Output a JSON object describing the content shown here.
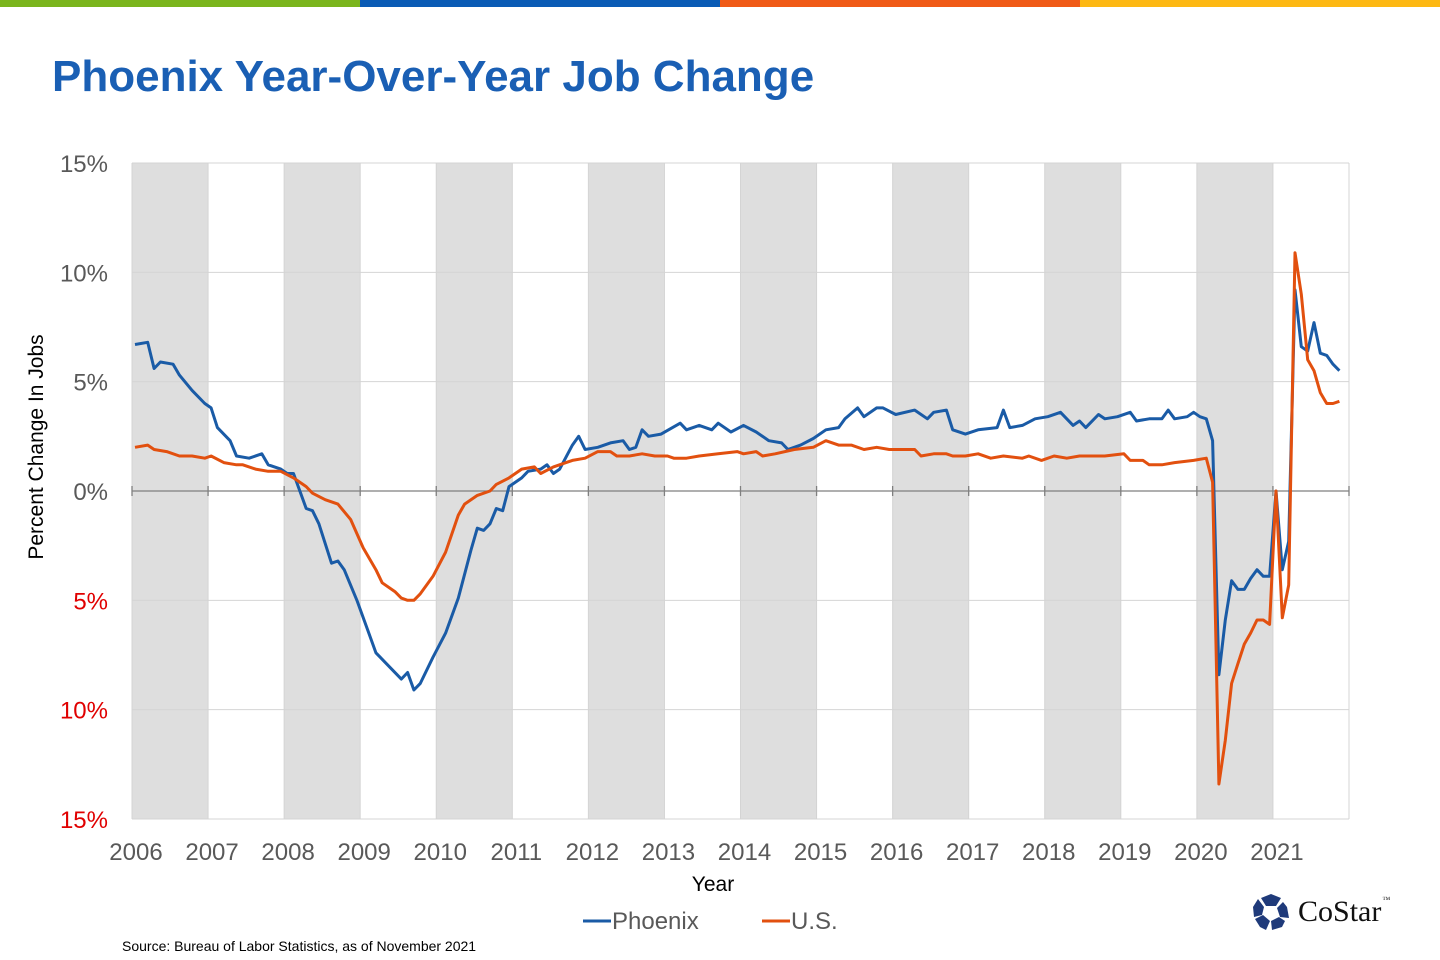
{
  "header": {
    "title": "Phoenix Year-Over-Year Job Change"
  },
  "top_bar_colors": [
    "#7ab51d",
    "#0a5bb5",
    "#f05a16",
    "#fdb813"
  ],
  "footer": {
    "source": "Source: Bureau of Labor Statistics, as of November 2021"
  },
  "logo": {
    "text": "CoStar",
    "tm": "™"
  },
  "chart_data": {
    "type": "line",
    "title": "Phoenix Year-Over-Year Job Change",
    "xlabel": "Year",
    "ylabel": "Percent Change In Jobs",
    "ylim": [
      -15,
      15
    ],
    "xlim": [
      "2006-01",
      "2021-12"
    ],
    "grid": true,
    "shaded_bands": "alternating years starting 2006",
    "legend_position": "bottom",
    "y_ticks": [
      {
        "value": 15,
        "label": "15%",
        "color": "#595959"
      },
      {
        "value": 10,
        "label": "10%",
        "color": "#595959"
      },
      {
        "value": 5,
        "label": "5%",
        "color": "#595959"
      },
      {
        "value": 0,
        "label": "0%",
        "color": "#595959"
      },
      {
        "value": -5,
        "label": "5%",
        "color": "#e00000"
      },
      {
        "value": -10,
        "label": "10%",
        "color": "#e00000"
      },
      {
        "value": -15,
        "label": "15%",
        "color": "#e00000"
      }
    ],
    "x_ticks": [
      "2006",
      "2007",
      "2008",
      "2009",
      "2010",
      "2011",
      "2012",
      "2013",
      "2014",
      "2015",
      "2016",
      "2017",
      "2018",
      "2019",
      "2020",
      "2021"
    ],
    "series": [
      {
        "name": "Phoenix",
        "color": "#1a5ba6",
        "points": [
          [
            "2006-01",
            6.7
          ],
          [
            "2006-03",
            6.8
          ],
          [
            "2006-04",
            5.6
          ],
          [
            "2006-05",
            5.9
          ],
          [
            "2006-07",
            5.8
          ],
          [
            "2006-08",
            5.3
          ],
          [
            "2006-10",
            4.6
          ],
          [
            "2006-12",
            4.0
          ],
          [
            "2007-01",
            3.8
          ],
          [
            "2007-02",
            2.9
          ],
          [
            "2007-04",
            2.3
          ],
          [
            "2007-05",
            1.6
          ],
          [
            "2007-07",
            1.5
          ],
          [
            "2007-09",
            1.7
          ],
          [
            "2007-10",
            1.2
          ],
          [
            "2007-12",
            1.0
          ],
          [
            "2008-01",
            0.8
          ],
          [
            "2008-02",
            0.8
          ],
          [
            "2008-04",
            -0.8
          ],
          [
            "2008-05",
            -0.9
          ],
          [
            "2008-06",
            -1.5
          ],
          [
            "2008-08",
            -3.3
          ],
          [
            "2008-09",
            -3.2
          ],
          [
            "2008-10",
            -3.6
          ],
          [
            "2008-12",
            -5.0
          ],
          [
            "2009-02",
            -6.6
          ],
          [
            "2009-03",
            -7.4
          ],
          [
            "2009-05",
            -8.0
          ],
          [
            "2009-07",
            -8.6
          ],
          [
            "2009-08",
            -8.3
          ],
          [
            "2009-09",
            -9.1
          ],
          [
            "2009-10",
            -8.8
          ],
          [
            "2009-12",
            -7.6
          ],
          [
            "2010-02",
            -6.5
          ],
          [
            "2010-04",
            -4.9
          ],
          [
            "2010-06",
            -2.7
          ],
          [
            "2010-07",
            -1.7
          ],
          [
            "2010-08",
            -1.8
          ],
          [
            "2010-09",
            -1.5
          ],
          [
            "2010-10",
            -0.8
          ],
          [
            "2010-11",
            -0.9
          ],
          [
            "2010-12",
            0.2
          ],
          [
            "2011-02",
            0.6
          ],
          [
            "2011-03",
            0.9
          ],
          [
            "2011-05",
            1.0
          ],
          [
            "2011-06",
            1.2
          ],
          [
            "2011-07",
            0.8
          ],
          [
            "2011-08",
            1.0
          ],
          [
            "2011-10",
            2.1
          ],
          [
            "2011-11",
            2.5
          ],
          [
            "2011-12",
            1.9
          ],
          [
            "2012-02",
            2.0
          ],
          [
            "2012-04",
            2.2
          ],
          [
            "2012-06",
            2.3
          ],
          [
            "2012-07",
            1.9
          ],
          [
            "2012-08",
            2.0
          ],
          [
            "2012-09",
            2.8
          ],
          [
            "2012-10",
            2.5
          ],
          [
            "2012-12",
            2.6
          ],
          [
            "2013-03",
            3.1
          ],
          [
            "2013-04",
            2.8
          ],
          [
            "2013-06",
            3.0
          ],
          [
            "2013-08",
            2.8
          ],
          [
            "2013-09",
            3.1
          ],
          [
            "2013-11",
            2.7
          ],
          [
            "2014-01",
            3.0
          ],
          [
            "2014-03",
            2.7
          ],
          [
            "2014-05",
            2.3
          ],
          [
            "2014-07",
            2.2
          ],
          [
            "2014-08",
            1.9
          ],
          [
            "2014-10",
            2.1
          ],
          [
            "2014-12",
            2.4
          ],
          [
            "2015-02",
            2.8
          ],
          [
            "2015-04",
            2.9
          ],
          [
            "2015-05",
            3.3
          ],
          [
            "2015-07",
            3.8
          ],
          [
            "2015-08",
            3.4
          ],
          [
            "2015-10",
            3.8
          ],
          [
            "2015-11",
            3.8
          ],
          [
            "2016-01",
            3.5
          ],
          [
            "2016-04",
            3.7
          ],
          [
            "2016-06",
            3.3
          ],
          [
            "2016-07",
            3.6
          ],
          [
            "2016-09",
            3.7
          ],
          [
            "2016-10",
            2.8
          ],
          [
            "2016-12",
            2.6
          ],
          [
            "2017-02",
            2.8
          ],
          [
            "2017-05",
            2.9
          ],
          [
            "2017-06",
            3.7
          ],
          [
            "2017-07",
            2.9
          ],
          [
            "2017-09",
            3.0
          ],
          [
            "2017-11",
            3.3
          ],
          [
            "2018-01",
            3.4
          ],
          [
            "2018-03",
            3.6
          ],
          [
            "2018-05",
            3.0
          ],
          [
            "2018-06",
            3.2
          ],
          [
            "2018-07",
            2.9
          ],
          [
            "2018-09",
            3.5
          ],
          [
            "2018-10",
            3.3
          ],
          [
            "2018-12",
            3.4
          ],
          [
            "2019-02",
            3.6
          ],
          [
            "2019-03",
            3.2
          ],
          [
            "2019-05",
            3.3
          ],
          [
            "2019-07",
            3.3
          ],
          [
            "2019-08",
            3.7
          ],
          [
            "2019-09",
            3.3
          ],
          [
            "2019-11",
            3.4
          ],
          [
            "2019-12",
            3.6
          ],
          [
            "2020-01",
            3.4
          ],
          [
            "2020-02",
            3.3
          ],
          [
            "2020-03",
            2.3
          ],
          [
            "2020-04",
            -8.4
          ],
          [
            "2020-05",
            -5.9
          ],
          [
            "2020-06",
            -4.1
          ],
          [
            "2020-07",
            -4.5
          ],
          [
            "2020-08",
            -4.5
          ],
          [
            "2020-09",
            -4.0
          ],
          [
            "2020-10",
            -3.6
          ],
          [
            "2020-11",
            -3.9
          ],
          [
            "2020-12",
            -3.9
          ],
          [
            "2021-01",
            0.0
          ],
          [
            "2021-02",
            -3.6
          ],
          [
            "2021-03",
            -2.3
          ],
          [
            "2021-04",
            9.2
          ],
          [
            "2021-05",
            6.6
          ],
          [
            "2021-06",
            6.4
          ],
          [
            "2021-07",
            7.7
          ],
          [
            "2021-08",
            6.3
          ],
          [
            "2021-09",
            6.2
          ],
          [
            "2021-10",
            5.8
          ],
          [
            "2021-11",
            5.5
          ]
        ]
      },
      {
        "name": "U.S.",
        "color": "#e2500f",
        "points": [
          [
            "2006-01",
            2.0
          ],
          [
            "2006-03",
            2.1
          ],
          [
            "2006-04",
            1.9
          ],
          [
            "2006-06",
            1.8
          ],
          [
            "2006-08",
            1.6
          ],
          [
            "2006-10",
            1.6
          ],
          [
            "2006-12",
            1.5
          ],
          [
            "2007-01",
            1.6
          ],
          [
            "2007-03",
            1.3
          ],
          [
            "2007-05",
            1.2
          ],
          [
            "2007-06",
            1.2
          ],
          [
            "2007-08",
            1.0
          ],
          [
            "2007-10",
            0.9
          ],
          [
            "2007-12",
            0.9
          ],
          [
            "2008-02",
            0.6
          ],
          [
            "2008-04",
            0.2
          ],
          [
            "2008-05",
            -0.1
          ],
          [
            "2008-07",
            -0.4
          ],
          [
            "2008-09",
            -0.6
          ],
          [
            "2008-11",
            -1.3
          ],
          [
            "2009-01",
            -2.6
          ],
          [
            "2009-03",
            -3.6
          ],
          [
            "2009-04",
            -4.2
          ],
          [
            "2009-06",
            -4.6
          ],
          [
            "2009-07",
            -4.9
          ],
          [
            "2009-08",
            -5.0
          ],
          [
            "2009-09",
            -5.0
          ],
          [
            "2009-10",
            -4.7
          ],
          [
            "2009-12",
            -3.9
          ],
          [
            "2010-02",
            -2.8
          ],
          [
            "2010-04",
            -1.1
          ],
          [
            "2010-05",
            -0.6
          ],
          [
            "2010-07",
            -0.2
          ],
          [
            "2010-09",
            0.0
          ],
          [
            "2010-10",
            0.3
          ],
          [
            "2010-12",
            0.6
          ],
          [
            "2011-02",
            1.0
          ],
          [
            "2011-04",
            1.1
          ],
          [
            "2011-05",
            0.8
          ],
          [
            "2011-07",
            1.1
          ],
          [
            "2011-09",
            1.3
          ],
          [
            "2011-10",
            1.4
          ],
          [
            "2011-12",
            1.5
          ],
          [
            "2012-02",
            1.8
          ],
          [
            "2012-04",
            1.8
          ],
          [
            "2012-05",
            1.6
          ],
          [
            "2012-07",
            1.6
          ],
          [
            "2012-09",
            1.7
          ],
          [
            "2012-11",
            1.6
          ],
          [
            "2013-01",
            1.6
          ],
          [
            "2013-02",
            1.5
          ],
          [
            "2013-04",
            1.5
          ],
          [
            "2013-06",
            1.6
          ],
          [
            "2013-09",
            1.7
          ],
          [
            "2013-12",
            1.8
          ],
          [
            "2014-01",
            1.7
          ],
          [
            "2014-03",
            1.8
          ],
          [
            "2014-04",
            1.6
          ],
          [
            "2014-06",
            1.7
          ],
          [
            "2014-09",
            1.9
          ],
          [
            "2014-12",
            2.0
          ],
          [
            "2015-02",
            2.3
          ],
          [
            "2015-04",
            2.1
          ],
          [
            "2015-06",
            2.1
          ],
          [
            "2015-08",
            1.9
          ],
          [
            "2015-10",
            2.0
          ],
          [
            "2015-12",
            1.9
          ],
          [
            "2016-02",
            1.9
          ],
          [
            "2016-04",
            1.9
          ],
          [
            "2016-05",
            1.6
          ],
          [
            "2016-07",
            1.7
          ],
          [
            "2016-09",
            1.7
          ],
          [
            "2016-10",
            1.6
          ],
          [
            "2016-12",
            1.6
          ],
          [
            "2017-02",
            1.7
          ],
          [
            "2017-04",
            1.5
          ],
          [
            "2017-06",
            1.6
          ],
          [
            "2017-09",
            1.5
          ],
          [
            "2017-10",
            1.6
          ],
          [
            "2017-12",
            1.4
          ],
          [
            "2018-02",
            1.6
          ],
          [
            "2018-04",
            1.5
          ],
          [
            "2018-06",
            1.6
          ],
          [
            "2018-08",
            1.6
          ],
          [
            "2018-10",
            1.6
          ],
          [
            "2019-01",
            1.7
          ],
          [
            "2019-02",
            1.4
          ],
          [
            "2019-04",
            1.4
          ],
          [
            "2019-05",
            1.2
          ],
          [
            "2019-07",
            1.2
          ],
          [
            "2019-09",
            1.3
          ],
          [
            "2019-12",
            1.4
          ],
          [
            "2020-02",
            1.5
          ],
          [
            "2020-03",
            0.4
          ],
          [
            "2020-04",
            -13.4
          ],
          [
            "2020-05",
            -11.4
          ],
          [
            "2020-06",
            -8.8
          ],
          [
            "2020-07",
            -7.9
          ],
          [
            "2020-08",
            -7.0
          ],
          [
            "2020-09",
            -6.5
          ],
          [
            "2020-10",
            -5.9
          ],
          [
            "2020-11",
            -5.9
          ],
          [
            "2020-12",
            -6.1
          ],
          [
            "2021-01",
            0.0
          ],
          [
            "2021-02",
            -5.8
          ],
          [
            "2021-03",
            -4.3
          ],
          [
            "2021-04",
            10.9
          ],
          [
            "2021-05",
            9.0
          ],
          [
            "2021-06",
            6.0
          ],
          [
            "2021-07",
            5.5
          ],
          [
            "2021-08",
            4.5
          ],
          [
            "2021-09",
            4.0
          ],
          [
            "2021-10",
            4.0
          ],
          [
            "2021-11",
            4.1
          ]
        ]
      }
    ]
  }
}
